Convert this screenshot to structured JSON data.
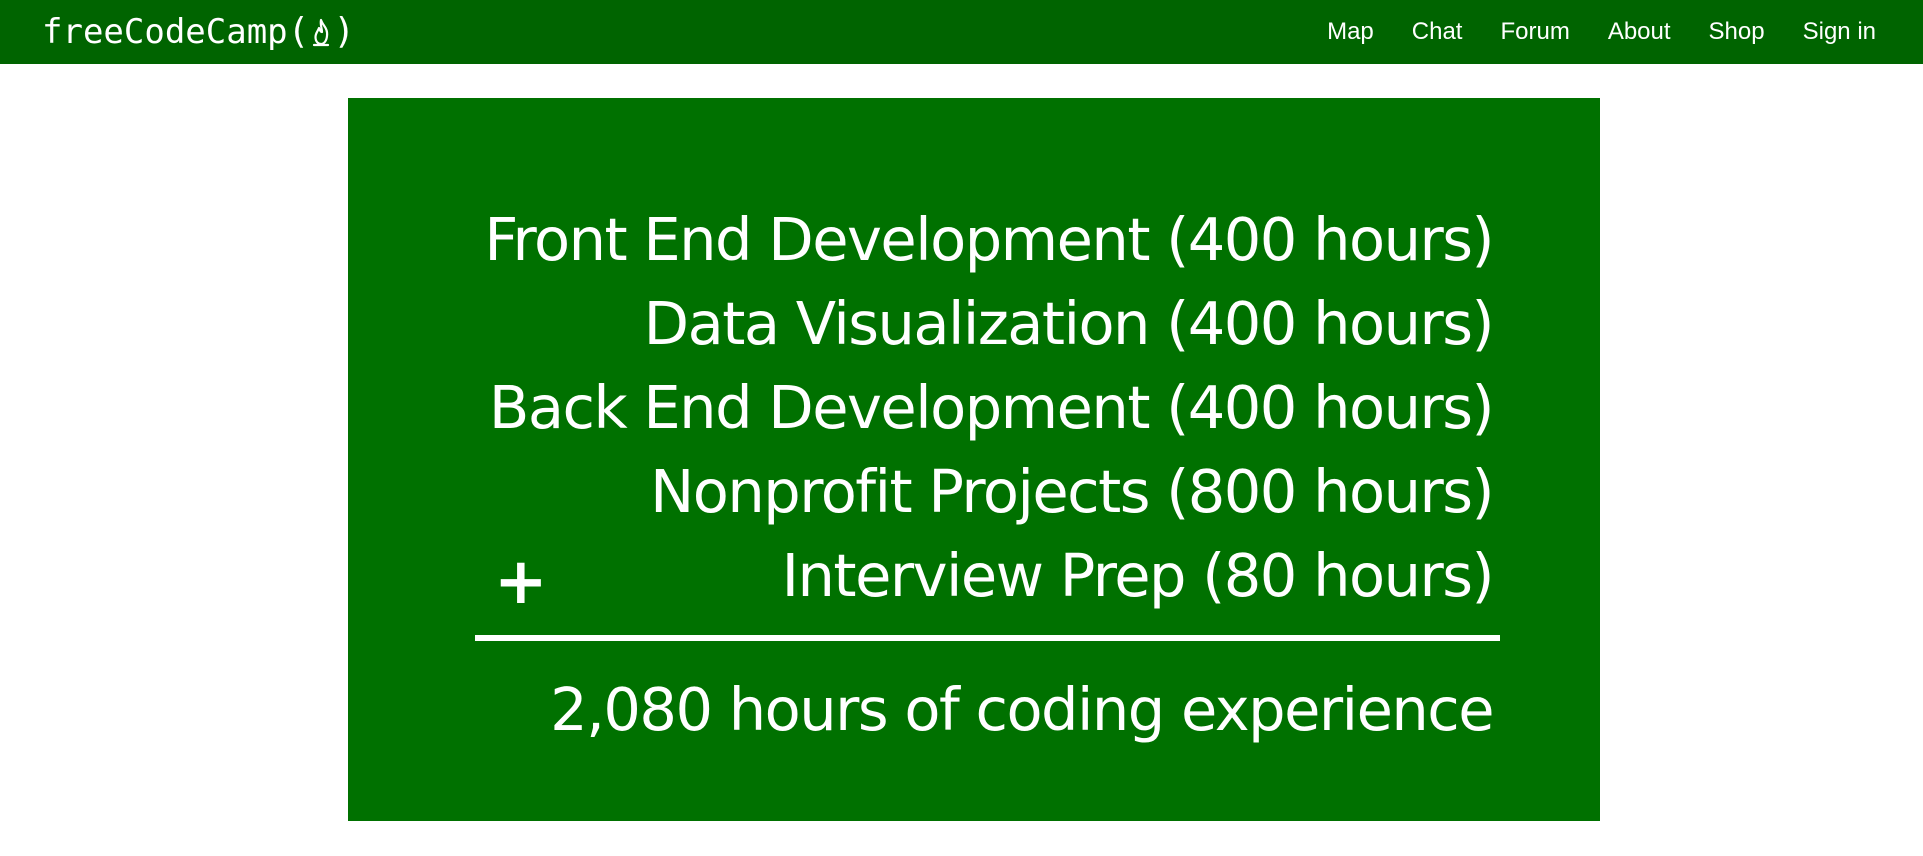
{
  "navbar": {
    "brand": "freeCodeCamp",
    "brand_open": "(",
    "brand_close": ")",
    "brand_icon": "flame-icon",
    "links": [
      "Map",
      "Chat",
      "Forum",
      "About",
      "Shop",
      "Sign in"
    ]
  },
  "slide": {
    "lines": [
      "Front End Development (400 hours)",
      "Data Visualization (400 hours)",
      "Back End Development (400 hours)",
      "Nonprofit Projects (800 hours)",
      "Interview Prep (80 hours)"
    ],
    "plus": "+",
    "total": "2,080 hours of coding experience"
  },
  "colors": {
    "navbar": "#006400",
    "slide": "#007100",
    "text": "#ffffff"
  }
}
